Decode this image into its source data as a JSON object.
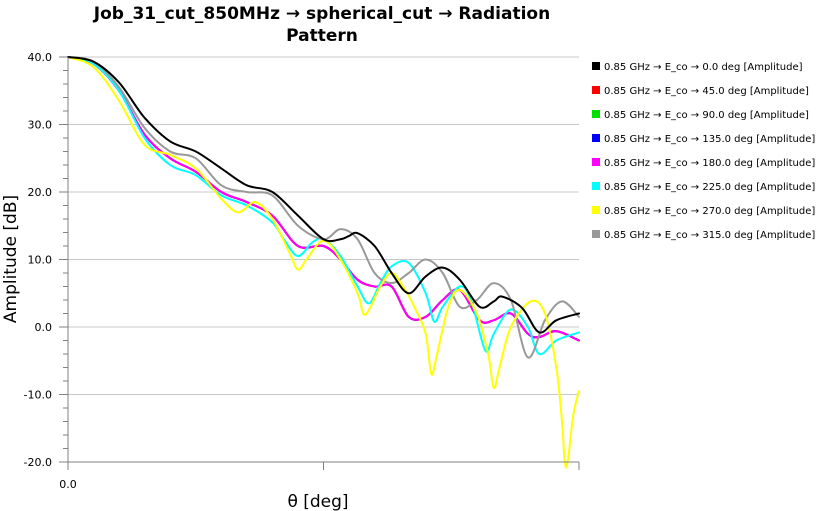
{
  "chart_data": {
    "type": "line",
    "title": "Job_31_cut_850MHz → spherical_cut → Radiation Pattern",
    "title_lines": [
      "Job_31_cut_850MHz → spherical_cut → Radiation",
      "Pattern"
    ],
    "xlabel": "θ [deg]",
    "ylabel": "Amplitude [dB]",
    "xlim": [
      0,
      180
    ],
    "ylim": [
      -20,
      40
    ],
    "x_tick_labels": [
      {
        "value": 0,
        "label": "0.0"
      }
    ],
    "x_ticks": [
      0,
      90,
      180
    ],
    "y_ticks": [
      {
        "value": 40,
        "label": "40.0"
      },
      {
        "value": 30,
        "label": "30.0"
      },
      {
        "value": 20,
        "label": "20.0"
      },
      {
        "value": 10,
        "label": "10.0"
      },
      {
        "value": 0,
        "label": "0.0"
      },
      {
        "value": -10,
        "label": "-10.0"
      },
      {
        "value": -20,
        "label": "-20.0"
      }
    ],
    "grid": "horizontal",
    "legend_position": "right",
    "series": [
      {
        "name": "0.85 GHz → E_co → 0.0 deg [Amplitude]",
        "color": "#000000",
        "points": [
          [
            0,
            40
          ],
          [
            9,
            39.3
          ],
          [
            18,
            36.2
          ],
          [
            27,
            31
          ],
          [
            36,
            27.5
          ],
          [
            45,
            26
          ],
          [
            54,
            23.5
          ],
          [
            63,
            21
          ],
          [
            72,
            20
          ],
          [
            81,
            16.5
          ],
          [
            90,
            13
          ],
          [
            96,
            13
          ],
          [
            99,
            13.5
          ],
          [
            102,
            13.9
          ],
          [
            108,
            12
          ],
          [
            114,
            8
          ],
          [
            120,
            5
          ],
          [
            126,
            7.5
          ],
          [
            132,
            8.8
          ],
          [
            138,
            7
          ],
          [
            145,
            3
          ],
          [
            150,
            3.8
          ],
          [
            153,
            4.5
          ],
          [
            160,
            2.8
          ],
          [
            166,
            -0.8
          ],
          [
            172,
            1
          ],
          [
            180,
            2
          ]
        ]
      },
      {
        "name": "0.85 GHz → E_co → 45.0 deg [Amplitude]",
        "color": "#ff0000",
        "points": [
          [
            0,
            40
          ],
          [
            9,
            39
          ],
          [
            18,
            35
          ],
          [
            27,
            28.5
          ],
          [
            36,
            25
          ],
          [
            45,
            23
          ],
          [
            54,
            20
          ],
          [
            63,
            18.5
          ],
          [
            72,
            16.5
          ],
          [
            81,
            12
          ],
          [
            90,
            12
          ],
          [
            96,
            10
          ],
          [
            102,
            7
          ],
          [
            108,
            6
          ],
          [
            114,
            6
          ],
          [
            120,
            1.5
          ],
          [
            126,
            1.5
          ],
          [
            132,
            4
          ],
          [
            138,
            5.5
          ],
          [
            145,
            1
          ],
          [
            150,
            1
          ],
          [
            156,
            2
          ],
          [
            162,
            -1
          ],
          [
            166,
            -1.5
          ],
          [
            172,
            -0.6
          ],
          [
            180,
            -2
          ]
        ]
      },
      {
        "name": "0.85 GHz → E_co → 90.0 deg [Amplitude]",
        "color": "#00e000",
        "points": [
          [
            0,
            40
          ],
          [
            9,
            39
          ],
          [
            18,
            35
          ],
          [
            27,
            28.5
          ],
          [
            36,
            25
          ],
          [
            45,
            23
          ],
          [
            54,
            20
          ],
          [
            63,
            18.5
          ],
          [
            72,
            16.5
          ],
          [
            81,
            12
          ],
          [
            90,
            12
          ],
          [
            96,
            10
          ],
          [
            102,
            7
          ],
          [
            108,
            6
          ],
          [
            114,
            6
          ],
          [
            120,
            1.5
          ],
          [
            126,
            1.5
          ],
          [
            132,
            4
          ],
          [
            138,
            5.5
          ],
          [
            145,
            1
          ],
          [
            150,
            1
          ],
          [
            156,
            2
          ],
          [
            162,
            -1
          ],
          [
            166,
            -1.5
          ],
          [
            172,
            -0.6
          ],
          [
            180,
            -2
          ]
        ]
      },
      {
        "name": "0.85 GHz → E_co → 135.0 deg [Amplitude]",
        "color": "#0000ff",
        "points": [
          [
            0,
            40
          ],
          [
            9,
            39
          ],
          [
            18,
            35
          ],
          [
            27,
            28.5
          ],
          [
            36,
            25
          ],
          [
            45,
            23
          ],
          [
            54,
            20
          ],
          [
            63,
            18.5
          ],
          [
            72,
            16.5
          ],
          [
            81,
            12
          ],
          [
            90,
            12
          ],
          [
            96,
            10
          ],
          [
            102,
            7
          ],
          [
            108,
            6
          ],
          [
            114,
            6
          ],
          [
            120,
            1.5
          ],
          [
            126,
            1.5
          ],
          [
            132,
            4
          ],
          [
            138,
            5.5
          ],
          [
            145,
            1
          ],
          [
            150,
            1
          ],
          [
            156,
            2
          ],
          [
            162,
            -1
          ],
          [
            166,
            -1.5
          ],
          [
            172,
            -0.6
          ],
          [
            180,
            -2
          ]
        ]
      },
      {
        "name": "0.85 GHz → E_co → 180.0 deg [Amplitude]",
        "color": "#ff00ff",
        "points": [
          [
            0,
            40
          ],
          [
            9,
            39
          ],
          [
            18,
            35
          ],
          [
            27,
            28.5
          ],
          [
            36,
            25
          ],
          [
            45,
            23
          ],
          [
            54,
            20
          ],
          [
            63,
            18.5
          ],
          [
            72,
            16.5
          ],
          [
            81,
            12
          ],
          [
            90,
            12
          ],
          [
            96,
            10
          ],
          [
            102,
            7
          ],
          [
            108,
            6
          ],
          [
            114,
            6
          ],
          [
            120,
            1.5
          ],
          [
            126,
            1.5
          ],
          [
            132,
            4
          ],
          [
            138,
            5.5
          ],
          [
            145,
            1
          ],
          [
            150,
            1
          ],
          [
            156,
            2
          ],
          [
            162,
            -1
          ],
          [
            166,
            -1.5
          ],
          [
            172,
            -0.6
          ],
          [
            180,
            -2
          ]
        ]
      },
      {
        "name": "0.85 GHz → E_co → 225.0 deg [Amplitude]",
        "color": "#00ffff",
        "points": [
          [
            0,
            40
          ],
          [
            9,
            39
          ],
          [
            18,
            35
          ],
          [
            27,
            28
          ],
          [
            36,
            24
          ],
          [
            45,
            22.5
          ],
          [
            54,
            19.5
          ],
          [
            63,
            18
          ],
          [
            72,
            15.5
          ],
          [
            76,
            13
          ],
          [
            81,
            10.5
          ],
          [
            86,
            12.5
          ],
          [
            90,
            13
          ],
          [
            96,
            10.5
          ],
          [
            102,
            6
          ],
          [
            106,
            3.5
          ],
          [
            110,
            6.5
          ],
          [
            114,
            9
          ],
          [
            120,
            9.5
          ],
          [
            126,
            5
          ],
          [
            129,
            0.8
          ],
          [
            132,
            3
          ],
          [
            138,
            6
          ],
          [
            142,
            4
          ],
          [
            147,
            -3.5
          ],
          [
            150,
            -1
          ],
          [
            156,
            2.6
          ],
          [
            162,
            0
          ],
          [
            166,
            -4
          ],
          [
            172,
            -2
          ],
          [
            180,
            -0.8
          ]
        ]
      },
      {
        "name": "0.85 GHz → E_co → 270.0 deg [Amplitude]",
        "color": "#ffff00",
        "points": [
          [
            0,
            40
          ],
          [
            9,
            38.5
          ],
          [
            18,
            33.5
          ],
          [
            27,
            27
          ],
          [
            36,
            25.5
          ],
          [
            45,
            23.5
          ],
          [
            54,
            19
          ],
          [
            60,
            17
          ],
          [
            66,
            18.5
          ],
          [
            72,
            16
          ],
          [
            78,
            11
          ],
          [
            81,
            8.5
          ],
          [
            84,
            10
          ],
          [
            90,
            12.8
          ],
          [
            96,
            10
          ],
          [
            102,
            5
          ],
          [
            104,
            2
          ],
          [
            106,
            2.5
          ],
          [
            110,
            6
          ],
          [
            114,
            8
          ],
          [
            118,
            6
          ],
          [
            122,
            3
          ],
          [
            126,
            -1
          ],
          [
            128,
            -7
          ],
          [
            130,
            -4
          ],
          [
            134,
            3
          ],
          [
            138,
            5.5
          ],
          [
            144,
            2
          ],
          [
            148,
            -4
          ],
          [
            150,
            -9
          ],
          [
            152,
            -6
          ],
          [
            156,
            0
          ],
          [
            163,
            3.8
          ],
          [
            168,
            2
          ],
          [
            172,
            -6
          ],
          [
            174,
            -14
          ],
          [
            175,
            -20
          ],
          [
            176,
            -20
          ],
          [
            178,
            -13
          ],
          [
            180,
            -9.5
          ]
        ]
      },
      {
        "name": "0.85 GHz → E_co → 315.0 deg [Amplitude]",
        "color": "#999999",
        "points": [
          [
            0,
            40
          ],
          [
            9,
            39.3
          ],
          [
            18,
            35.5
          ],
          [
            27,
            29.5
          ],
          [
            36,
            26
          ],
          [
            45,
            25
          ],
          [
            54,
            21
          ],
          [
            63,
            20
          ],
          [
            72,
            19.5
          ],
          [
            81,
            15
          ],
          [
            90,
            13
          ],
          [
            96,
            14.5
          ],
          [
            102,
            13
          ],
          [
            108,
            8
          ],
          [
            114,
            6.5
          ],
          [
            120,
            8
          ],
          [
            126,
            10
          ],
          [
            132,
            8
          ],
          [
            138,
            3
          ],
          [
            144,
            4
          ],
          [
            150,
            6.5
          ],
          [
            156,
            4
          ],
          [
            162,
            -4.5
          ],
          [
            168,
            1
          ],
          [
            174,
            3.8
          ],
          [
            180,
            1.5
          ]
        ]
      }
    ]
  }
}
